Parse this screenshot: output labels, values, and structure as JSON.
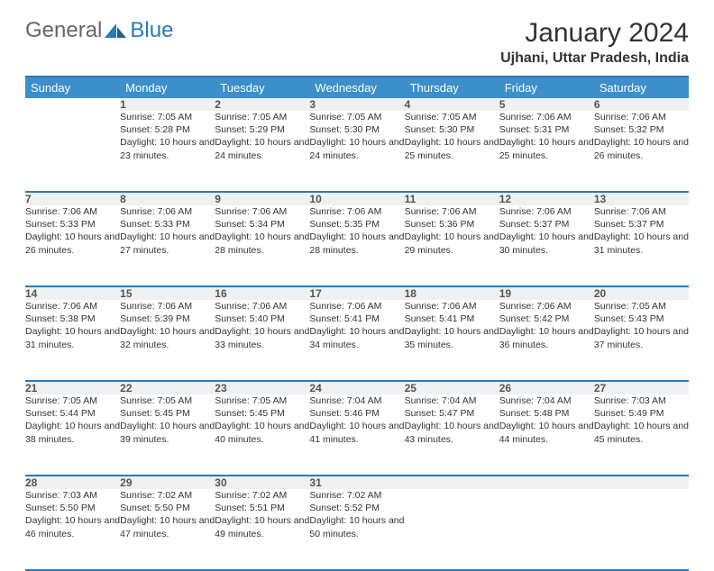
{
  "logo": {
    "text1": "General",
    "text2": "Blue"
  },
  "title": "January 2024",
  "location": "Ujhani, Uttar Pradesh, India",
  "colors": {
    "header_bg": "#3d8fc9",
    "border": "#2a7ab8",
    "daynum_bg": "#eef0f2",
    "text": "#333333"
  },
  "weekdays": [
    "Sunday",
    "Monday",
    "Tuesday",
    "Wednesday",
    "Thursday",
    "Friday",
    "Saturday"
  ],
  "weeks": [
    [
      null,
      {
        "d": "1",
        "sr": "7:05 AM",
        "ss": "5:28 PM",
        "dl": "10 hours and 23 minutes."
      },
      {
        "d": "2",
        "sr": "7:05 AM",
        "ss": "5:29 PM",
        "dl": "10 hours and 24 minutes."
      },
      {
        "d": "3",
        "sr": "7:05 AM",
        "ss": "5:30 PM",
        "dl": "10 hours and 24 minutes."
      },
      {
        "d": "4",
        "sr": "7:05 AM",
        "ss": "5:30 PM",
        "dl": "10 hours and 25 minutes."
      },
      {
        "d": "5",
        "sr": "7:06 AM",
        "ss": "5:31 PM",
        "dl": "10 hours and 25 minutes."
      },
      {
        "d": "6",
        "sr": "7:06 AM",
        "ss": "5:32 PM",
        "dl": "10 hours and 26 minutes."
      }
    ],
    [
      {
        "d": "7",
        "sr": "7:06 AM",
        "ss": "5:33 PM",
        "dl": "10 hours and 26 minutes."
      },
      {
        "d": "8",
        "sr": "7:06 AM",
        "ss": "5:33 PM",
        "dl": "10 hours and 27 minutes."
      },
      {
        "d": "9",
        "sr": "7:06 AM",
        "ss": "5:34 PM",
        "dl": "10 hours and 28 minutes."
      },
      {
        "d": "10",
        "sr": "7:06 AM",
        "ss": "5:35 PM",
        "dl": "10 hours and 28 minutes."
      },
      {
        "d": "11",
        "sr": "7:06 AM",
        "ss": "5:36 PM",
        "dl": "10 hours and 29 minutes."
      },
      {
        "d": "12",
        "sr": "7:06 AM",
        "ss": "5:37 PM",
        "dl": "10 hours and 30 minutes."
      },
      {
        "d": "13",
        "sr": "7:06 AM",
        "ss": "5:37 PM",
        "dl": "10 hours and 31 minutes."
      }
    ],
    [
      {
        "d": "14",
        "sr": "7:06 AM",
        "ss": "5:38 PM",
        "dl": "10 hours and 31 minutes."
      },
      {
        "d": "15",
        "sr": "7:06 AM",
        "ss": "5:39 PM",
        "dl": "10 hours and 32 minutes."
      },
      {
        "d": "16",
        "sr": "7:06 AM",
        "ss": "5:40 PM",
        "dl": "10 hours and 33 minutes."
      },
      {
        "d": "17",
        "sr": "7:06 AM",
        "ss": "5:41 PM",
        "dl": "10 hours and 34 minutes."
      },
      {
        "d": "18",
        "sr": "7:06 AM",
        "ss": "5:41 PM",
        "dl": "10 hours and 35 minutes."
      },
      {
        "d": "19",
        "sr": "7:06 AM",
        "ss": "5:42 PM",
        "dl": "10 hours and 36 minutes."
      },
      {
        "d": "20",
        "sr": "7:05 AM",
        "ss": "5:43 PM",
        "dl": "10 hours and 37 minutes."
      }
    ],
    [
      {
        "d": "21",
        "sr": "7:05 AM",
        "ss": "5:44 PM",
        "dl": "10 hours and 38 minutes."
      },
      {
        "d": "22",
        "sr": "7:05 AM",
        "ss": "5:45 PM",
        "dl": "10 hours and 39 minutes."
      },
      {
        "d": "23",
        "sr": "7:05 AM",
        "ss": "5:45 PM",
        "dl": "10 hours and 40 minutes."
      },
      {
        "d": "24",
        "sr": "7:04 AM",
        "ss": "5:46 PM",
        "dl": "10 hours and 41 minutes."
      },
      {
        "d": "25",
        "sr": "7:04 AM",
        "ss": "5:47 PM",
        "dl": "10 hours and 43 minutes."
      },
      {
        "d": "26",
        "sr": "7:04 AM",
        "ss": "5:48 PM",
        "dl": "10 hours and 44 minutes."
      },
      {
        "d": "27",
        "sr": "7:03 AM",
        "ss": "5:49 PM",
        "dl": "10 hours and 45 minutes."
      }
    ],
    [
      {
        "d": "28",
        "sr": "7:03 AM",
        "ss": "5:50 PM",
        "dl": "10 hours and 46 minutes."
      },
      {
        "d": "29",
        "sr": "7:02 AM",
        "ss": "5:50 PM",
        "dl": "10 hours and 47 minutes."
      },
      {
        "d": "30",
        "sr": "7:02 AM",
        "ss": "5:51 PM",
        "dl": "10 hours and 49 minutes."
      },
      {
        "d": "31",
        "sr": "7:02 AM",
        "ss": "5:52 PM",
        "dl": "10 hours and 50 minutes."
      },
      null,
      null,
      null
    ]
  ],
  "labels": {
    "sunrise": "Sunrise:",
    "sunset": "Sunset:",
    "daylight": "Daylight:"
  }
}
